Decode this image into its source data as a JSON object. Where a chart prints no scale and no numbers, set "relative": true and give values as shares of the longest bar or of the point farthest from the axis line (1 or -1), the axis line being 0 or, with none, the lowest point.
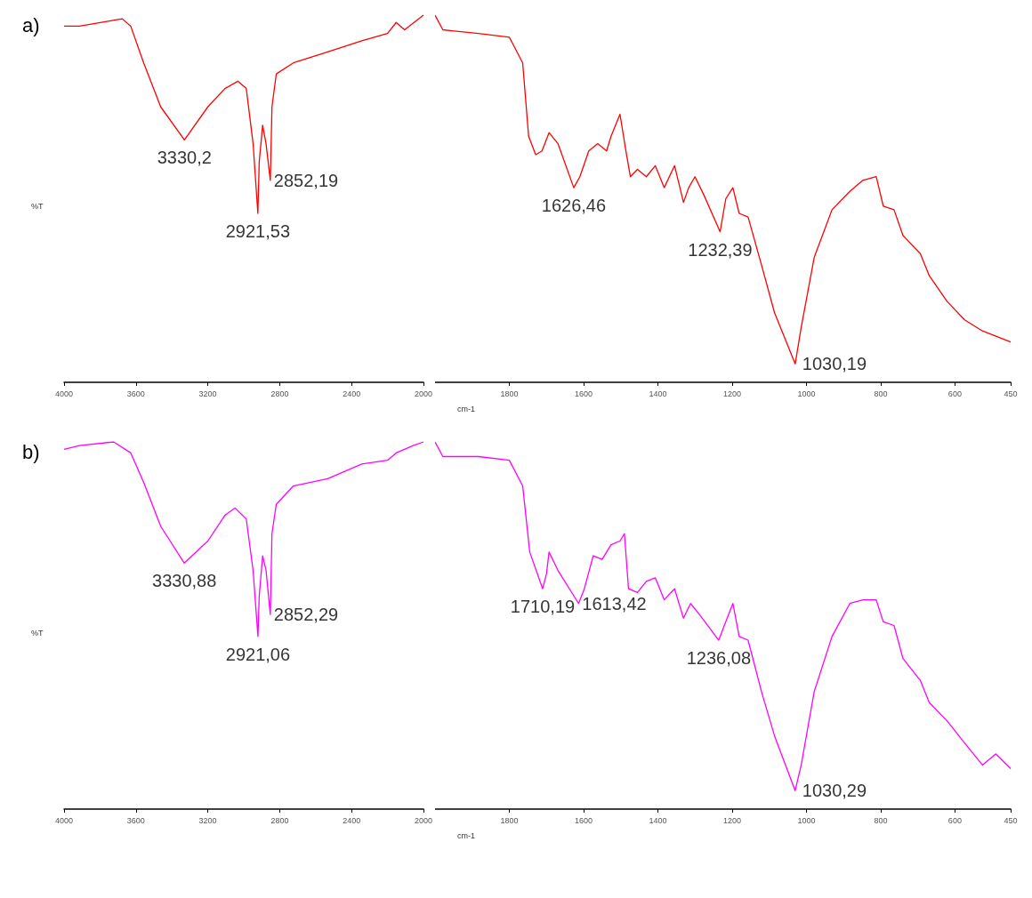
{
  "chart_data": [
    {
      "type": "line",
      "title": "a)",
      "ylabel": "%T",
      "relative": true,
      "xlim": [
        4000,
        2000
      ],
      "xticks": [
        4000,
        3600,
        3200,
        2800,
        2400,
        2000
      ],
      "series": [
        {
          "color": "#ff0000",
          "x": [
            4000,
            3914,
            3676,
            3629,
            3557,
            3462,
            3330.2,
            3200,
            3105,
            3033,
            2986,
            2948,
            2921.53,
            2914,
            2895,
            2876,
            2852.19,
            2843,
            2819,
            2724,
            2533,
            2343,
            2200,
            2152,
            2105,
            2000
          ],
          "values": [
            0.97,
            0.97,
            0.99,
            0.97,
            0.87,
            0.75,
            0.66,
            0.75,
            0.8,
            0.82,
            0.8,
            0.65,
            0.46,
            0.6,
            0.7,
            0.65,
            0.55,
            0.75,
            0.84,
            0.87,
            0.9,
            0.93,
            0.95,
            0.98,
            0.96,
            1
          ]
        }
      ],
      "annotations": [
        {
          "text": "3330,2",
          "x": 3330.2,
          "y": 0.66
        },
        {
          "text": "2921,53",
          "x": 2921.53,
          "y": 0.46
        },
        {
          "text": "2852,19",
          "x": 2852.19,
          "y": 0.55
        }
      ]
    },
    {
      "type": "line",
      "xlabel": "cm-1",
      "relative": true,
      "xlim": [
        2000,
        450
      ],
      "xticks": [
        1800,
        1600,
        1400,
        1200,
        1000,
        800,
        600,
        450
      ],
      "series": [
        {
          "color": "#ff0000",
          "x": [
            2000,
            1979,
            1883,
            1800,
            1764,
            1748,
            1729,
            1712,
            1693,
            1669,
            1626.46,
            1610,
            1586,
            1562,
            1538,
            1526,
            1502,
            1486,
            1474,
            1455,
            1431,
            1407,
            1383,
            1355,
            1331,
            1317,
            1300,
            1276,
            1232.39,
            1217,
            1198,
            1181,
            1157,
            1121,
            1086,
            1030.19,
            1014,
            979,
            931,
            883,
            848,
            812,
            793,
            764,
            740,
            693,
            669,
            621,
            574,
            526,
            450
          ],
          "values": [
            1,
            0.96,
            0.95,
            0.94,
            0.87,
            0.67,
            0.62,
            0.63,
            0.68,
            0.65,
            0.53,
            0.56,
            0.63,
            0.65,
            0.63,
            0.67,
            0.73,
            0.63,
            0.56,
            0.58,
            0.56,
            0.59,
            0.53,
            0.59,
            0.49,
            0.53,
            0.56,
            0.51,
            0.41,
            0.5,
            0.53,
            0.46,
            0.45,
            0.32,
            0.19,
            0.05,
            0.15,
            0.34,
            0.47,
            0.52,
            0.55,
            0.56,
            0.48,
            0.47,
            0.4,
            0.35,
            0.29,
            0.22,
            0.17,
            0.14,
            0.11
          ]
        }
      ],
      "annotations": [
        {
          "text": "1626,46",
          "x": 1626.46,
          "y": 0.53
        },
        {
          "text": "1232,39",
          "x": 1232.39,
          "y": 0.41
        },
        {
          "text": "1030,19",
          "x": 1030.19,
          "y": 0.05
        }
      ]
    },
    {
      "type": "line",
      "title": "b)",
      "ylabel": "%T",
      "relative": true,
      "xlim": [
        4000,
        2000
      ],
      "xticks": [
        4000,
        3600,
        3200,
        2800,
        2400,
        2000
      ],
      "series": [
        {
          "color": "#ff00ff",
          "x": [
            4000,
            3914,
            3724,
            3629,
            3557,
            3462,
            3330.88,
            3200,
            3105,
            3048,
            2986,
            2948,
            2921.06,
            2914,
            2895,
            2876,
            2852.29,
            2843,
            2819,
            2724,
            2533,
            2343,
            2200,
            2152,
            2057,
            2000
          ],
          "values": [
            0.98,
            0.99,
            1,
            0.97,
            0.89,
            0.77,
            0.67,
            0.73,
            0.8,
            0.82,
            0.79,
            0.65,
            0.47,
            0.58,
            0.69,
            0.65,
            0.53,
            0.75,
            0.83,
            0.88,
            0.9,
            0.94,
            0.95,
            0.97,
            0.99,
            1
          ]
        }
      ],
      "annotations": [
        {
          "text": "3330,88",
          "x": 3330.88,
          "y": 0.67
        },
        {
          "text": "2921,06",
          "x": 2921.06,
          "y": 0.47
        },
        {
          "text": "2852,29",
          "x": 2852.29,
          "y": 0.53
        }
      ]
    },
    {
      "type": "line",
      "xlabel": "cm-1",
      "relative": true,
      "xlim": [
        2000,
        450
      ],
      "xticks": [
        1800,
        1600,
        1400,
        1200,
        1000,
        800,
        600,
        450
      ],
      "series": [
        {
          "color": "#ff00ff",
          "x": [
            2000,
            1979,
            1883,
            1800,
            1764,
            1745,
            1710.19,
            1700,
            1693,
            1669,
            1613.42,
            1598,
            1574,
            1550,
            1526,
            1502,
            1490,
            1479,
            1455,
            1431,
            1407,
            1383,
            1355,
            1331,
            1312,
            1288,
            1236.08,
            1221,
            1198,
            1181,
            1157,
            1121,
            1086,
            1030.29,
            1014,
            979,
            931,
            883,
            848,
            812,
            793,
            764,
            740,
            693,
            669,
            621,
            574,
            526,
            490,
            450
          ],
          "values": [
            1,
            0.96,
            0.96,
            0.95,
            0.88,
            0.7,
            0.6,
            0.64,
            0.7,
            0.65,
            0.56,
            0.6,
            0.69,
            0.68,
            0.72,
            0.73,
            0.75,
            0.6,
            0.59,
            0.62,
            0.63,
            0.57,
            0.6,
            0.52,
            0.56,
            0.53,
            0.46,
            0.5,
            0.56,
            0.47,
            0.46,
            0.32,
            0.2,
            0.05,
            0.12,
            0.32,
            0.47,
            0.56,
            0.57,
            0.57,
            0.51,
            0.5,
            0.41,
            0.35,
            0.29,
            0.24,
            0.18,
            0.12,
            0.15,
            0.11
          ]
        }
      ],
      "annotations": [
        {
          "text": "1710,19",
          "x": 1710.19,
          "y": 0.6
        },
        {
          "text": "1613,42",
          "x": 1613.42,
          "y": 0.56
        },
        {
          "text": "1236,08",
          "x": 1236.08,
          "y": 0.46
        },
        {
          "text": "1030,29",
          "x": 1030.29,
          "y": 0.05
        }
      ]
    }
  ]
}
